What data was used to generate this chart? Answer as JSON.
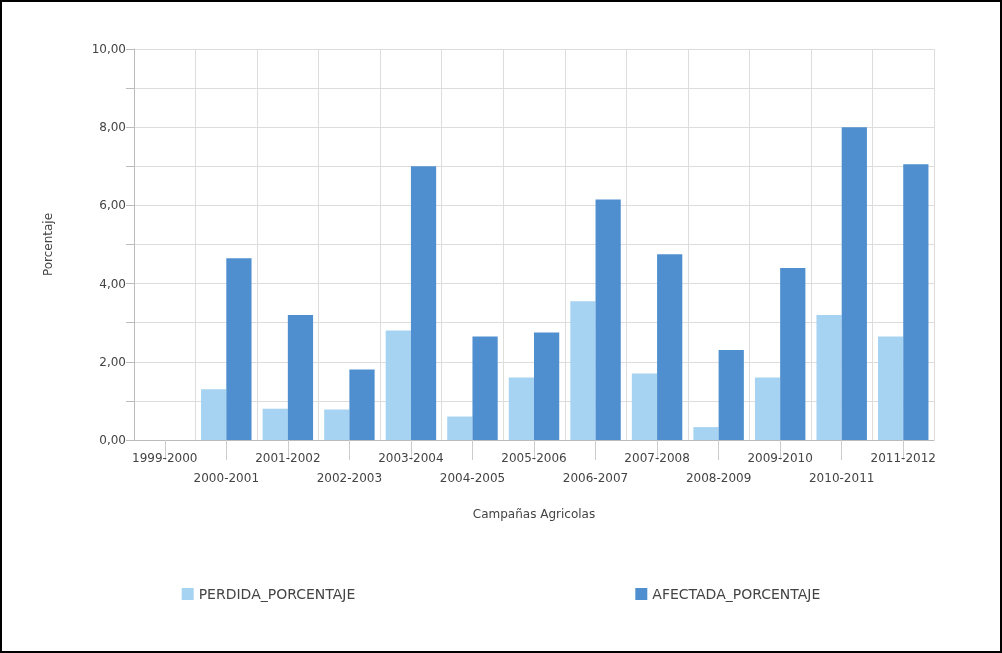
{
  "chart_data": {
    "type": "bar",
    "xlabel": "Campañas Agricolas",
    "ylabel": "Porcentaje",
    "categories": [
      "1999-2000",
      "2000-2001",
      "2001-2002",
      "2002-2003",
      "2003-2004",
      "2004-2005",
      "2005-2006",
      "2006-2007",
      "2007-2008",
      "2008-2009",
      "2009-2010",
      "2010-2011",
      "2011-2012"
    ],
    "series": [
      {
        "name": "PERDIDA_PORCENTAJE",
        "color": "#a6d3f2",
        "values": [
          null,
          1.3,
          0.8,
          0.78,
          2.8,
          0.6,
          1.6,
          3.55,
          1.7,
          0.33,
          1.6,
          3.2,
          2.65
        ]
      },
      {
        "name": "AFECTADA_PORCENTAJE",
        "color": "#4f8fcf",
        "values": [
          null,
          4.65,
          3.2,
          1.8,
          7.0,
          2.65,
          2.75,
          6.15,
          4.75,
          2.3,
          4.4,
          8.0,
          7.05
        ]
      }
    ],
    "ylim": [
      0,
      10
    ],
    "yticks": [
      {
        "value": 0,
        "label": "0,00"
      },
      {
        "value": 1,
        "label": null
      },
      {
        "value": 2,
        "label": "2,00"
      },
      {
        "value": 3,
        "label": null
      },
      {
        "value": 4,
        "label": "4,00"
      },
      {
        "value": 5,
        "label": null
      },
      {
        "value": 6,
        "label": "6,00"
      },
      {
        "value": 7,
        "label": null
      },
      {
        "value": 8,
        "label": "8,00"
      },
      {
        "value": 9,
        "label": null
      },
      {
        "value": 10,
        "label": "10,00"
      }
    ],
    "grid": true,
    "legend": "bottom"
  }
}
